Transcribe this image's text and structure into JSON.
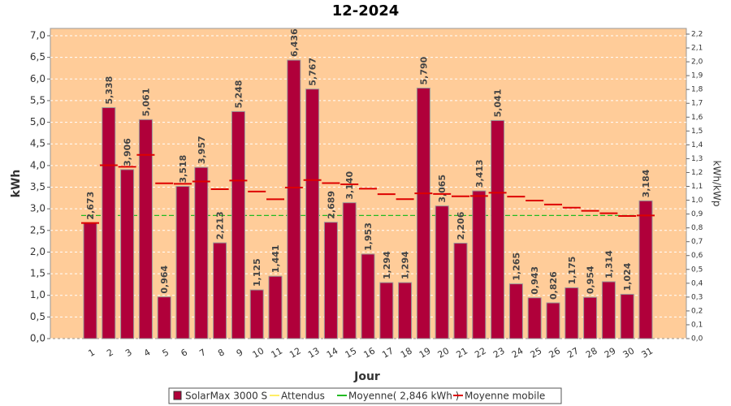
{
  "chart_data": {
    "type": "bar",
    "title": "12-2024",
    "x_label": "Jour",
    "y_label": "kWh",
    "y2_label": "kWh/kWp",
    "categories": [
      "1",
      "2",
      "3",
      "4",
      "5",
      "6",
      "7",
      "8",
      "9",
      "10",
      "11",
      "12",
      "13",
      "14",
      "15",
      "16",
      "17",
      "18",
      "19",
      "20",
      "21",
      "22",
      "23",
      "24",
      "25",
      "26",
      "27",
      "28",
      "29",
      "30",
      "31"
    ],
    "series": [
      {
        "name": "SolarMax 3000 S",
        "color": "#b0003a",
        "values": [
          2.673,
          5.338,
          3.906,
          5.061,
          0.964,
          3.518,
          3.957,
          2.213,
          5.248,
          1.125,
          1.441,
          6.436,
          5.767,
          2.689,
          3.14,
          1.953,
          1.294,
          1.294,
          5.79,
          3.065,
          2.206,
          3.413,
          5.041,
          1.265,
          0.943,
          0.826,
          1.175,
          0.954,
          1.314,
          1.024,
          3.184
        ],
        "value_labels": [
          "2,673",
          "5,338",
          "3,906",
          "5,061",
          "0,964",
          "3,518",
          "3,957",
          "2,213",
          "5,248",
          "1,125",
          "1,441",
          "6,436",
          "5,767",
          "2,689",
          "3,140",
          "1,953",
          "1,294",
          "1,294",
          "5,790",
          "3,065",
          "2,206",
          "3,413",
          "5,041",
          "1,265",
          "0,943",
          "0,826",
          "1,175",
          "0,954",
          "1,314",
          "1,024",
          "3,184"
        ]
      },
      {
        "name": "Attendus",
        "color": "#ffee66"
      },
      {
        "name": "Moyenne( 2,846 kWh )",
        "color": "#22bb22",
        "value": 2.846
      },
      {
        "name": "Moyenne mobile",
        "color": "#dd0000",
        "values": [
          2.673,
          4.006,
          3.972,
          4.245,
          3.588,
          3.577,
          3.631,
          3.454,
          3.653,
          3.4,
          3.222,
          3.49,
          3.665,
          3.595,
          3.565,
          3.464,
          3.337,
          3.223,
          3.358,
          3.344,
          3.289,
          3.295,
          3.371,
          3.283,
          3.19,
          3.099,
          3.027,
          2.953,
          2.897,
          2.834,
          2.846
        ]
      }
    ],
    "ylim": [
      0,
      7.0
    ],
    "yticks": [
      {
        "value": 0,
        "label": "0,0"
      },
      {
        "value": 0.5,
        "label": "0,5"
      },
      {
        "value": 1.0,
        "label": "1,0"
      },
      {
        "value": 1.5,
        "label": "1,5"
      },
      {
        "value": 2.0,
        "label": "2,0"
      },
      {
        "value": 2.5,
        "label": "2,5"
      },
      {
        "value": 3.0,
        "label": "3,0"
      },
      {
        "value": 3.5,
        "label": "3,5"
      },
      {
        "value": 4.0,
        "label": "4,0"
      },
      {
        "value": 4.5,
        "label": "4,5"
      },
      {
        "value": 5.0,
        "label": "5,0"
      },
      {
        "value": 5.5,
        "label": "5,5"
      },
      {
        "value": 6.0,
        "label": "6,0"
      },
      {
        "value": 6.5,
        "label": "6,5"
      },
      {
        "value": 7.0,
        "label": "7,0"
      }
    ],
    "y2lim": [
      0,
      2.2
    ],
    "y2ticks": [
      {
        "value": 0,
        "label": "0,0"
      },
      {
        "value": 0.1,
        "label": "0,1"
      },
      {
        "value": 0.2,
        "label": "0,2"
      },
      {
        "value": 0.3,
        "label": "0,3"
      },
      {
        "value": 0.4,
        "label": "0,4"
      },
      {
        "value": 0.5,
        "label": "0,5"
      },
      {
        "value": 0.6,
        "label": "0,6"
      },
      {
        "value": 0.7,
        "label": "0,7"
      },
      {
        "value": 0.8,
        "label": "0,8"
      },
      {
        "value": 0.9,
        "label": "0,9"
      },
      {
        "value": 1.0,
        "label": "1,0"
      },
      {
        "value": 1.1,
        "label": "1,1"
      },
      {
        "value": 1.2,
        "label": "1,2"
      },
      {
        "value": 1.3,
        "label": "1,3"
      },
      {
        "value": 1.4,
        "label": "1,4"
      },
      {
        "value": 1.5,
        "label": "1,5"
      },
      {
        "value": 1.6,
        "label": "1,6"
      },
      {
        "value": 1.7,
        "label": "1,7"
      },
      {
        "value": 1.8,
        "label": "1,8"
      },
      {
        "value": 1.9,
        "label": "1,9"
      },
      {
        "value": 2.0,
        "label": "2,0"
      },
      {
        "value": 2.1,
        "label": "2,1"
      },
      {
        "value": 2.2,
        "label": "2,2"
      }
    ],
    "grid": true
  }
}
